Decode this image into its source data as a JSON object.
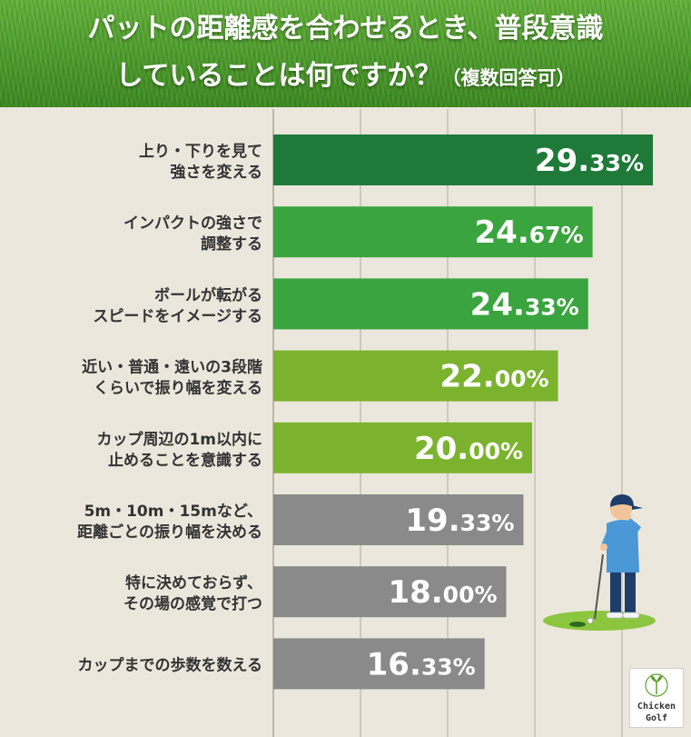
{
  "header": {
    "title_line1": "パットの距離感を合わせるとき、普段意識",
    "title_line2": "していることは何ですか？",
    "title_note": "（複数回答可）"
  },
  "logo": {
    "line1": "Chicken",
    "line2": "Golf"
  },
  "colors": {
    "dark_green": "#1f7a3a",
    "mid_green": "#3aa43f",
    "light_green": "#7bb32e",
    "gray": "#8a8a8a",
    "background": "#ece7dc"
  },
  "chart_data": {
    "type": "bar",
    "orientation": "horizontal",
    "categories": [
      [
        "上り・下りを見て",
        "強さを変える"
      ],
      [
        "インパクトの強さで",
        "調整する"
      ],
      [
        "ボールが転がる",
        "スピードをイメージする"
      ],
      [
        "近い・普通・遠いの3段階",
        "くらいで振り幅を変える"
      ],
      [
        "カップ周辺の1m以内に",
        "止めることを意識する"
      ],
      [
        "5m・10m・15mなど、",
        "距離ごとの振り幅を決める"
      ],
      [
        "特に決めておらず、",
        "その場の感覚で打つ"
      ],
      [
        "カップまでの歩数を数える"
      ]
    ],
    "values": [
      29.33,
      24.67,
      24.33,
      22.0,
      20.0,
      19.33,
      18.0,
      16.33
    ],
    "value_labels": [
      [
        "29.",
        "33%"
      ],
      [
        "24.",
        "67%"
      ],
      [
        "24.",
        "33%"
      ],
      [
        "22.",
        "00%"
      ],
      [
        "20.",
        "00%"
      ],
      [
        "19.",
        "33%"
      ],
      [
        "18.",
        "00%"
      ],
      [
        "16.",
        "33%"
      ]
    ],
    "bar_colors": [
      "#1f7a3a",
      "#3aa43f",
      "#3aa43f",
      "#7bb32e",
      "#7bb32e",
      "#8a8a8a",
      "#8a8a8a",
      "#8a8a8a"
    ],
    "xlim": [
      0,
      30
    ],
    "grid": true
  }
}
